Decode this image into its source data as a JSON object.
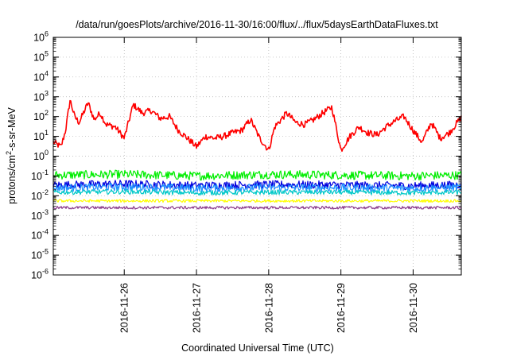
{
  "chart_data": {
    "type": "line",
    "title": "/data/run/goesPlots/archive/2016-11-30/16:00/flux/../flux/5daysEarthDataFluxes.txt",
    "xlabel": "Coordinated Universal Time (UTC)",
    "ylabel": {
      "base": "protons/cm",
      "sup": "2",
      "rest": "-s-sr-MeV"
    },
    "y_scale": "log",
    "ylim": [
      1e-06,
      1000000.0
    ],
    "y_ticks": [
      {
        "base": "10",
        "exp": "-6",
        "value": 1e-06
      },
      {
        "base": "10",
        "exp": "-5",
        "value": 1e-05
      },
      {
        "base": "10",
        "exp": "-4",
        "value": 0.0001
      },
      {
        "base": "10",
        "exp": "-3",
        "value": 0.001
      },
      {
        "base": "10",
        "exp": "-2",
        "value": 0.01
      },
      {
        "base": "10",
        "exp": "-1",
        "value": 0.1
      },
      {
        "base": "10",
        "exp": "0",
        "value": 1
      },
      {
        "base": "10",
        "exp": "1",
        "value": 10
      },
      {
        "base": "10",
        "exp": "2",
        "value": 100
      },
      {
        "base": "10",
        "exp": "3",
        "value": 1000
      },
      {
        "base": "10",
        "exp": "4",
        "value": 10000
      },
      {
        "base": "10",
        "exp": "5",
        "value": 100000
      },
      {
        "base": "10",
        "exp": "6",
        "value": 1000000
      }
    ],
    "x_range": [
      "2016-11-25T00:25",
      "2016-11-30T16:00"
    ],
    "x_ticks": [
      "2016-11-26",
      "2016-11-27",
      "2016-11-28",
      "2016-11-29",
      "2016-11-30"
    ],
    "grid": true,
    "legend": "none",
    "series": [
      {
        "color": "#ff0000",
        "x": [
          "2016-11-25T00:25",
          "2016-11-25T03:00",
          "2016-11-25T04:30",
          "2016-11-25T06:00",
          "2016-11-25T07:30",
          "2016-11-25T09:00",
          "2016-11-25T12:00",
          "2016-11-25T14:00",
          "2016-11-25T16:00",
          "2016-11-25T18:00",
          "2016-11-25T21:00",
          "2016-11-26T00:00",
          "2016-11-26T03:00",
          "2016-11-26T06:00",
          "2016-11-26T09:00",
          "2016-11-26T12:00",
          "2016-11-26T15:00",
          "2016-11-26T18:00",
          "2016-11-26T21:00",
          "2016-11-27T00:00",
          "2016-11-27T03:00",
          "2016-11-27T06:00",
          "2016-11-27T09:00",
          "2016-11-27T12:00",
          "2016-11-27T15:00",
          "2016-11-27T18:00",
          "2016-11-27T21:00",
          "2016-11-28T00:00",
          "2016-11-28T02:00",
          "2016-11-28T06:00",
          "2016-11-28T09:00",
          "2016-11-28T12:00",
          "2016-11-28T15:00",
          "2016-11-28T18:00",
          "2016-11-28T21:00",
          "2016-11-29T00:00",
          "2016-11-29T03:00",
          "2016-11-29T06:00",
          "2016-11-29T09:00",
          "2016-11-29T12:00",
          "2016-11-29T15:00",
          "2016-11-29T18:00",
          "2016-11-29T21:00",
          "2016-11-30T00:00",
          "2016-11-30T03:00",
          "2016-11-30T06:00",
          "2016-11-30T09:00",
          "2016-11-30T12:00",
          "2016-11-30T16:00"
        ],
        "y": [
          5,
          3,
          20,
          700,
          100,
          50,
          500,
          70,
          150,
          40,
          30,
          8,
          400,
          150,
          200,
          80,
          100,
          20,
          8,
          3,
          10,
          8,
          10,
          15,
          20,
          70,
          8,
          2,
          30,
          150,
          50,
          40,
          70,
          150,
          300,
          2,
          10,
          30,
          15,
          12,
          30,
          60,
          100,
          20,
          5,
          50,
          8,
          15,
          90
        ]
      },
      {
        "color": "#00ee00",
        "x": [
          "2016-11-25T00:25",
          "2016-11-26T00:00",
          "2016-11-27T00:00",
          "2016-11-28T00:00",
          "2016-11-29T00:00",
          "2016-11-30T00:00",
          "2016-11-30T16:00"
        ],
        "y": [
          0.11,
          0.12,
          0.1,
          0.12,
          0.11,
          0.1,
          0.11
        ]
      },
      {
        "color": "#0000dd",
        "x": [
          "2016-11-25T00:25",
          "2016-11-26T00:00",
          "2016-11-27T00:00",
          "2016-11-28T00:00",
          "2016-11-29T00:00",
          "2016-11-30T00:00",
          "2016-11-30T16:00"
        ],
        "y": [
          0.035,
          0.04,
          0.033,
          0.037,
          0.035,
          0.032,
          0.036
        ]
      },
      {
        "color": "#1e90ff",
        "x": [
          "2016-11-25T00:25",
          "2016-11-26T00:00",
          "2016-11-27T00:00",
          "2016-11-28T00:00",
          "2016-11-29T00:00",
          "2016-11-30T00:00",
          "2016-11-30T16:00"
        ],
        "y": [
          0.025,
          0.028,
          0.024,
          0.026,
          0.025,
          0.024,
          0.026
        ]
      },
      {
        "color": "#00c8c8",
        "x": [
          "2016-11-25T00:25",
          "2016-11-26T00:00",
          "2016-11-27T00:00",
          "2016-11-28T00:00",
          "2016-11-29T00:00",
          "2016-11-30T00:00",
          "2016-11-30T16:00"
        ],
        "y": [
          0.015,
          0.016,
          0.014,
          0.015,
          0.015,
          0.014,
          0.015
        ]
      },
      {
        "color": "#ffff00",
        "x": [
          "2016-11-25T00:25",
          "2016-11-26T00:00",
          "2016-11-27T00:00",
          "2016-11-28T00:00",
          "2016-11-29T00:00",
          "2016-11-30T00:00",
          "2016-11-30T16:00"
        ],
        "y": [
          0.0055,
          0.0055,
          0.0055,
          0.0055,
          0.0055,
          0.0055,
          0.0055
        ]
      },
      {
        "color": "#8b3a8b",
        "x": [
          "2016-11-25T00:25",
          "2016-11-26T00:00",
          "2016-11-27T00:00",
          "2016-11-28T00:00",
          "2016-11-29T00:00",
          "2016-11-30T00:00",
          "2016-11-30T16:00"
        ],
        "y": [
          0.0025,
          0.0025,
          0.0025,
          0.0025,
          0.0025,
          0.0025,
          0.0025
        ]
      }
    ]
  }
}
